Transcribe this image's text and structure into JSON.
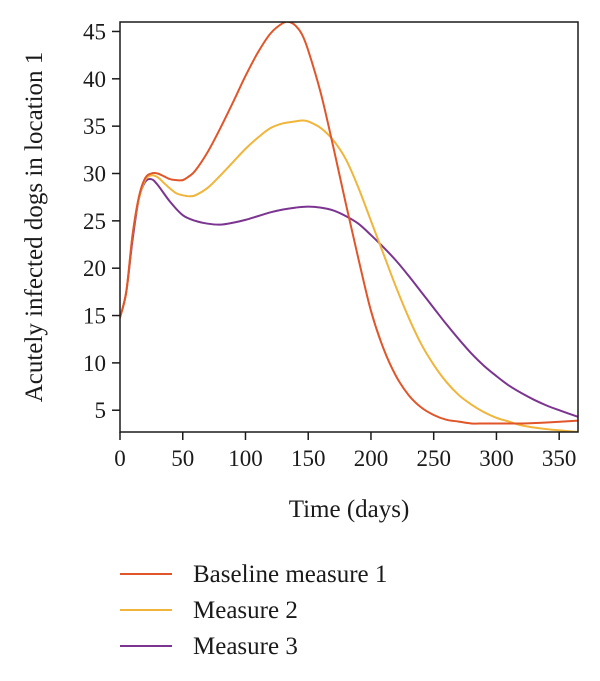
{
  "chart_data": {
    "type": "line",
    "xlabel": "Time (days)",
    "ylabel": "Acutely infected dogs in location 1",
    "xlim": [
      0,
      365
    ],
    "ylim": [
      2.7,
      46
    ],
    "xticks": [
      0,
      50,
      100,
      150,
      200,
      250,
      300,
      350
    ],
    "yticks": [
      5,
      10,
      15,
      20,
      25,
      30,
      35,
      40,
      45
    ],
    "grid": false,
    "legend_position": "bottom",
    "series": [
      {
        "name": "Baseline measure 1",
        "color": "#e0562a",
        "points": [
          [
            0,
            14.8
          ],
          [
            5,
            17.5
          ],
          [
            10,
            23.5
          ],
          [
            15,
            27.5
          ],
          [
            20,
            29.5
          ],
          [
            25,
            30
          ],
          [
            30,
            30
          ],
          [
            35,
            29.7
          ],
          [
            40,
            29.4
          ],
          [
            45,
            29.3
          ],
          [
            50,
            29.3
          ],
          [
            55,
            29.7
          ],
          [
            60,
            30.3
          ],
          [
            70,
            32.3
          ],
          [
            80,
            34.8
          ],
          [
            90,
            37.5
          ],
          [
            100,
            40.3
          ],
          [
            110,
            42.8
          ],
          [
            120,
            44.8
          ],
          [
            130,
            45.9
          ],
          [
            135,
            46
          ],
          [
            140,
            45.6
          ],
          [
            145,
            44.7
          ],
          [
            150,
            43
          ],
          [
            160,
            38.5
          ],
          [
            170,
            32.8
          ],
          [
            180,
            26.8
          ],
          [
            190,
            21
          ],
          [
            200,
            15.5
          ],
          [
            210,
            11.5
          ],
          [
            220,
            8.6
          ],
          [
            230,
            6.6
          ],
          [
            240,
            5.3
          ],
          [
            250,
            4.5
          ],
          [
            260,
            4
          ],
          [
            270,
            3.8
          ],
          [
            280,
            3.6
          ],
          [
            290,
            3.6
          ],
          [
            300,
            3.6
          ],
          [
            320,
            3.6
          ],
          [
            340,
            3.7
          ],
          [
            365,
            3.9
          ]
        ]
      },
      {
        "name": "Measure 2",
        "color": "#f0b53a",
        "points": [
          [
            0,
            14.8
          ],
          [
            5,
            17.5
          ],
          [
            10,
            23.5
          ],
          [
            15,
            27.3
          ],
          [
            20,
            29.3
          ],
          [
            25,
            29.8
          ],
          [
            30,
            29.6
          ],
          [
            35,
            29
          ],
          [
            40,
            28.4
          ],
          [
            45,
            27.9
          ],
          [
            50,
            27.7
          ],
          [
            55,
            27.6
          ],
          [
            60,
            27.7
          ],
          [
            70,
            28.5
          ],
          [
            80,
            29.8
          ],
          [
            90,
            31.2
          ],
          [
            100,
            32.6
          ],
          [
            110,
            33.8
          ],
          [
            120,
            34.8
          ],
          [
            130,
            35.3
          ],
          [
            140,
            35.5
          ],
          [
            145,
            35.6
          ],
          [
            150,
            35.5
          ],
          [
            160,
            34.8
          ],
          [
            170,
            33.5
          ],
          [
            180,
            31.5
          ],
          [
            190,
            28.5
          ],
          [
            200,
            25
          ],
          [
            210,
            21.5
          ],
          [
            220,
            18
          ],
          [
            230,
            14.8
          ],
          [
            240,
            12
          ],
          [
            250,
            9.8
          ],
          [
            260,
            8
          ],
          [
            270,
            6.6
          ],
          [
            280,
            5.6
          ],
          [
            290,
            4.8
          ],
          [
            300,
            4.2
          ],
          [
            310,
            3.8
          ],
          [
            320,
            3.4
          ],
          [
            340,
            3
          ],
          [
            365,
            2.7
          ]
        ]
      },
      {
        "name": "Measure 3",
        "color": "#7b3590",
        "points": [
          [
            0,
            14.8
          ],
          [
            5,
            17.5
          ],
          [
            10,
            23
          ],
          [
            15,
            27.3
          ],
          [
            20,
            29.1
          ],
          [
            25,
            29.4
          ],
          [
            30,
            28.8
          ],
          [
            40,
            27
          ],
          [
            50,
            25.6
          ],
          [
            60,
            25
          ],
          [
            70,
            24.7
          ],
          [
            80,
            24.6
          ],
          [
            90,
            24.8
          ],
          [
            100,
            25.1
          ],
          [
            110,
            25.5
          ],
          [
            120,
            25.9
          ],
          [
            130,
            26.2
          ],
          [
            140,
            26.4
          ],
          [
            150,
            26.5
          ],
          [
            160,
            26.4
          ],
          [
            170,
            26.1
          ],
          [
            180,
            25.5
          ],
          [
            190,
            24.7
          ],
          [
            200,
            23.5
          ],
          [
            210,
            22.2
          ],
          [
            220,
            20.8
          ],
          [
            230,
            19.2
          ],
          [
            240,
            17.5
          ],
          [
            250,
            15.8
          ],
          [
            260,
            14.1
          ],
          [
            270,
            12.5
          ],
          [
            280,
            11
          ],
          [
            290,
            9.7
          ],
          [
            300,
            8.6
          ],
          [
            310,
            7.6
          ],
          [
            320,
            6.8
          ],
          [
            330,
            6.1
          ],
          [
            340,
            5.5
          ],
          [
            350,
            5
          ],
          [
            365,
            4.3
          ]
        ]
      }
    ]
  }
}
